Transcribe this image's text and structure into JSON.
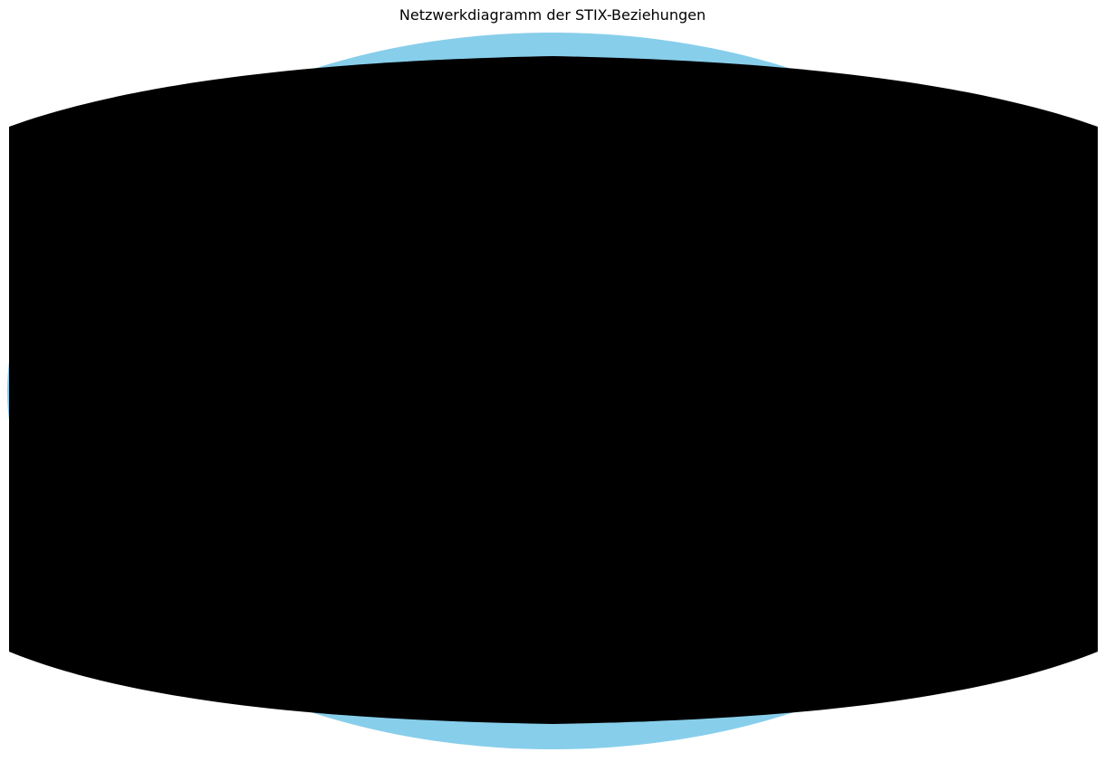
{
  "title": "Netzwerkdiagramm der STIX-Beziehungen",
  "colors": {
    "node": "#87ceeb",
    "edge": "#000000",
    "label": "#000000",
    "background": "#ffffff"
  },
  "layout_type": "circular",
  "edge_density": "very-dense"
}
